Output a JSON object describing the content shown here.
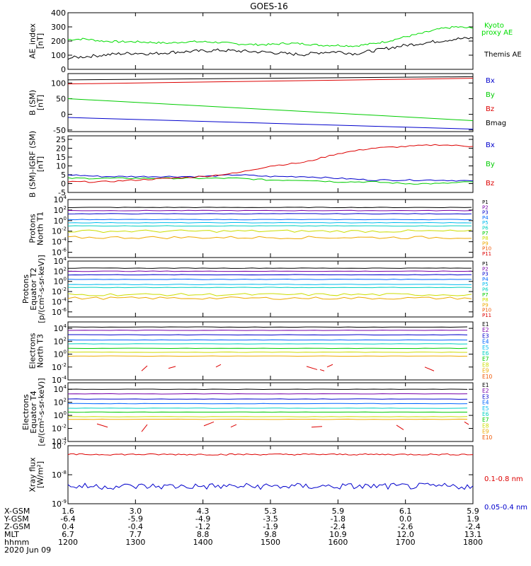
{
  "title": "GOES-16",
  "colors": {
    "kyoto": "#00dd00",
    "themis": "#000000",
    "bx": "#0000cc",
    "by": "#00cc00",
    "bz": "#dd0000",
    "bmag": "#000000",
    "p": [
      "#000000",
      "#7700aa",
      "#0000cc",
      "#0066ff",
      "#00bbee",
      "#00d0c0",
      "#00cc00",
      "#ccdd00",
      "#eeaa00",
      "#ee5500",
      "#dd0000"
    ],
    "e": [
      "#000000",
      "#7700aa",
      "#0000cc",
      "#0066ff",
      "#00bbee",
      "#00d0c0",
      "#00cc00",
      "#ccdd00",
      "#eeaa00",
      "#ee5500",
      "#dd0000"
    ],
    "xlong": "#dd0000",
    "xshort": "#0000cc"
  },
  "chart_data": [
    {
      "type": "line",
      "ylabel": "AE_index [nT]",
      "ylim": [
        0,
        400
      ],
      "yticks": [
        "0",
        "100",
        "200",
        "300",
        "400"
      ],
      "series": [
        {
          "name": "Kyoto proxy AE",
          "x": [
            1200,
            1215,
            1230,
            1245,
            1300,
            1315,
            1330,
            1345,
            1400,
            1415,
            1430,
            1445,
            1500,
            1515,
            1530,
            1545,
            1600,
            1615,
            1630,
            1645,
            1700,
            1715,
            1730,
            1745,
            1800
          ],
          "values": [
            210,
            215,
            200,
            195,
            195,
            190,
            185,
            195,
            195,
            190,
            180,
            175,
            175,
            185,
            180,
            170,
            170,
            165,
            180,
            200,
            230,
            255,
            285,
            300,
            290
          ]
        },
        {
          "name": "Themis AE",
          "x": [
            1200,
            1215,
            1230,
            1245,
            1300,
            1315,
            1330,
            1345,
            1400,
            1415,
            1430,
            1445,
            1500,
            1515,
            1530,
            1545,
            1600,
            1615,
            1630,
            1645,
            1700,
            1715,
            1730,
            1745,
            1800
          ],
          "values": [
            80,
            90,
            100,
            110,
            115,
            110,
            120,
            125,
            130,
            135,
            130,
            125,
            120,
            110,
            105,
            120,
            125,
            110,
            130,
            150,
            170,
            185,
            200,
            215,
            220
          ]
        }
      ]
    },
    {
      "type": "line",
      "ylabel": "B (SM) [nT]",
      "ylim": [
        -55,
        130
      ],
      "yticks": [
        "-50",
        "0",
        "50",
        "100"
      ],
      "series": [
        {
          "name": "Bx",
          "x": [
            1200,
            1800
          ],
          "values": [
            -10,
            -47
          ]
        },
        {
          "name": "By",
          "x": [
            1200,
            1800
          ],
          "values": [
            50,
            -20
          ]
        },
        {
          "name": "Bz",
          "x": [
            1200,
            1800
          ],
          "values": [
            97,
            115
          ]
        },
        {
          "name": "Bmag",
          "x": [
            1200,
            1800
          ],
          "values": [
            110,
            120
          ]
        }
      ]
    },
    {
      "type": "line",
      "ylabel": "B (SM)-IGRF (SM) [nT]",
      "ylim": [
        -5,
        27
      ],
      "yticks": [
        "-5",
        "0",
        "5",
        "10",
        "15",
        "20",
        "25"
      ],
      "series": [
        {
          "name": "Bx",
          "x": [
            1200,
            1230,
            1300,
            1330,
            1400,
            1430,
            1500,
            1530,
            1600,
            1630,
            1700,
            1730,
            1800
          ],
          "values": [
            5,
            4,
            4,
            4,
            4,
            5,
            4,
            4,
            3,
            2,
            2,
            2,
            1.5
          ]
        },
        {
          "name": "By",
          "x": [
            1200,
            1230,
            1300,
            1330,
            1400,
            1430,
            1500,
            1530,
            1600,
            1630,
            1700,
            1730,
            1800
          ],
          "values": [
            3,
            3,
            3,
            3,
            3,
            3,
            2,
            2,
            1,
            1,
            0,
            0,
            1
          ]
        },
        {
          "name": "Bz",
          "x": [
            1200,
            1230,
            1300,
            1330,
            1400,
            1430,
            1500,
            1530,
            1600,
            1630,
            1700,
            1730,
            1800
          ],
          "values": [
            1,
            1,
            2,
            3,
            4,
            6,
            10,
            12,
            17,
            20,
            21,
            22,
            21
          ]
        }
      ]
    },
    {
      "type": "line",
      "scale": "log",
      "ylabel": "Protons North T1",
      "ylim": [
        -7,
        4
      ],
      "yticks": [
        "10^-6",
        "10^-4",
        "10^-2",
        "10^0",
        "10^2",
        "10^4"
      ],
      "legend": [
        "P1",
        "P2",
        "P3",
        "P4",
        "P5",
        "P6",
        "P7",
        "P8",
        "P9",
        "P10",
        "P11"
      ],
      "levels": [
        2.5,
        1.9,
        1.3,
        0.2,
        -0.4,
        -1.0,
        -2.0,
        -3.2
      ]
    },
    {
      "type": "line",
      "scale": "log",
      "ylabel": "Protons Equator T2 [p/(cm²-s-sr-keV)]",
      "ylim": [
        -7,
        4
      ],
      "yticks": [
        "10^-6",
        "10^-4",
        "10^-2",
        "10^0",
        "10^2",
        "10^4"
      ],
      "legend": [
        "P1",
        "P2",
        "P3",
        "P4",
        "P5",
        "P6",
        "P7",
        "P8",
        "P9",
        "P10",
        "P11"
      ],
      "levels": [
        2.6,
        2.0,
        1.3,
        0.4,
        -0.6,
        -1.2,
        -2.6,
        -3.3
      ]
    },
    {
      "type": "line",
      "scale": "log",
      "ylabel": "Electrons North T3",
      "ylim": [
        -4,
        5
      ],
      "yticks": [
        "10^-4",
        "10^-2",
        "10^0",
        "10^2",
        "10^4"
      ],
      "legend": [
        "E1",
        "E2",
        "E3",
        "E4",
        "E5",
        "E6",
        "E7",
        "E8",
        "E9",
        "E10"
      ],
      "levels": [
        4.2,
        3.7,
        3.0,
        2.2,
        1.6,
        0.9,
        0.3,
        -0.3
      ]
    },
    {
      "type": "line",
      "scale": "log",
      "ylabel": "Electrons Equator T4 [e/(cm²-s-sr-keV)]",
      "ylim": [
        -4,
        5
      ],
      "yticks": [
        "10^-4",
        "10^-2",
        "10^0",
        "10^2",
        "10^4"
      ],
      "legend": [
        "E1",
        "E2",
        "E3",
        "E4",
        "E5",
        "E6",
        "E7",
        "E8",
        "E9",
        "E10"
      ],
      "levels": [
        4.0,
        3.3,
        2.5,
        1.8,
        1.1,
        0.5,
        -0.2,
        -0.6
      ]
    },
    {
      "type": "line",
      "scale": "log",
      "ylabel": "Xray flux [W/m²]",
      "ylim": [
        -9,
        -7
      ],
      "yticks": [
        "10^-9",
        "10^-8",
        "10^-7"
      ],
      "series": [
        {
          "name": "0.1-0.8 nm",
          "level": -7.3
        },
        {
          "name": "0.05-0.4 nm",
          "level": -8.4
        }
      ]
    }
  ],
  "legends": {
    "ae": [
      "Kyoto proxy AE",
      "Themis AE"
    ],
    "b": [
      "Bx",
      "By",
      "Bz",
      "Bmag"
    ],
    "bigrf": [
      "Bx",
      "By",
      "Bz"
    ],
    "xray": [
      "0.1-0.8 nm",
      "0.05-0.4 nm"
    ]
  },
  "footer": {
    "rows": [
      {
        "label": "X-GSM",
        "values": [
          "1.6",
          "3.0",
          "4.3",
          "5.3",
          "5.9",
          "6.1",
          "5.9"
        ]
      },
      {
        "label": "Y-GSM",
        "values": [
          "-6.4",
          "-5.9",
          "-4.9",
          "-3.5",
          "-1.8",
          "0.0",
          "1.9"
        ]
      },
      {
        "label": "Z-GSM",
        "values": [
          "0.4",
          "-0.4",
          "-1.2",
          "-1.9",
          "-2.4",
          "-2.6",
          "-2.4"
        ]
      },
      {
        "label": "MLT",
        "values": [
          "6.7",
          "7.7",
          "8.8",
          "9.8",
          "10.9",
          "12.0",
          "13.1"
        ]
      },
      {
        "label": "hhmm",
        "values": [
          "1200",
          "1300",
          "1400",
          "1500",
          "1600",
          "1700",
          "1800"
        ]
      }
    ],
    "date": "2020 Jun 09"
  }
}
